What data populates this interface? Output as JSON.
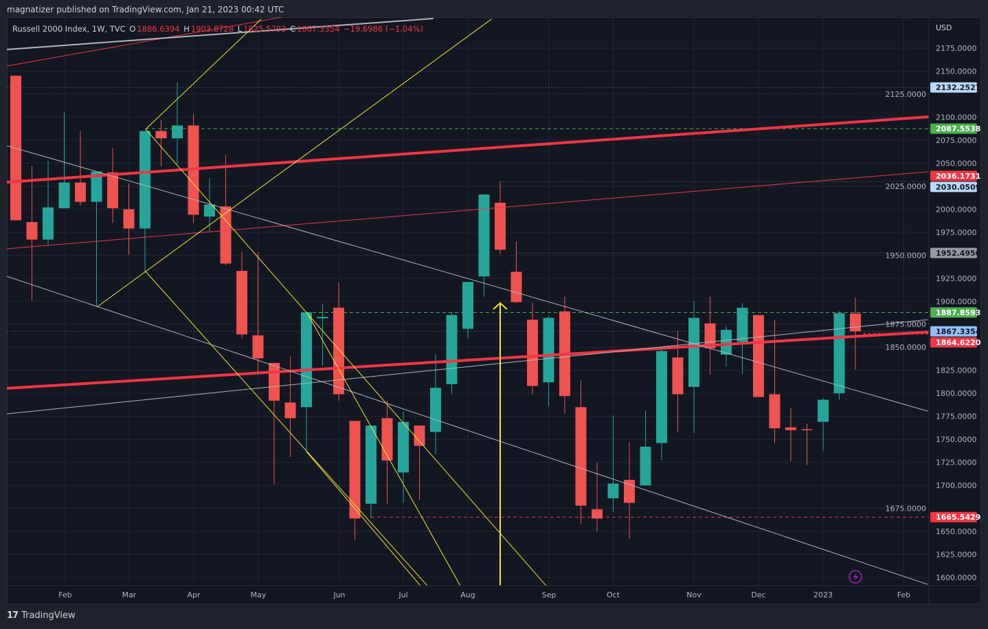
{
  "publish_line": "magnatizer published on TradingView.com, Jan 21, 2023 00:42 UTC",
  "legend": {
    "symbol": "Russell 2000 Index, 1W, TVC",
    "o_label": "O",
    "o": "1886.6394",
    "h_label": "H",
    "h": "1903.8728",
    "l_label": "L",
    "l": "1825.5793",
    "c_label": "C",
    "c": "1867.3354",
    "change": "−19.6986 (−1.04%)"
  },
  "footer": {
    "logo_mark": "17",
    "brand": "TradingView"
  },
  "colors": {
    "up": "#26a69a",
    "down": "#ef5350",
    "bg": "#131722",
    "grid": "#232733",
    "red_line": "#f23645",
    "yellow": "#f5e33b",
    "white_line": "#b2b5be",
    "green_level": "#4caf50"
  },
  "chart_data": {
    "type": "candlestick",
    "title": "Russell 2000 Index, 1W, TVC",
    "currency": "USD",
    "ylim": [
      1590,
      2210
    ],
    "y_ticks": [
      "2175.0000",
      "2150.0000",
      "2125.0000",
      "2100.0000",
      "2075.0000",
      "2050.0000",
      "2025.0000",
      "2000.0000",
      "1975.0000",
      "1950.0000",
      "1925.0000",
      "1900.0000",
      "1875.0000",
      "1850.0000",
      "1825.0000",
      "1800.0000",
      "1775.0000",
      "1750.0000",
      "1725.0000",
      "1700.0000",
      "1675.0000",
      "1650.0000",
      "1625.0000",
      "1600.0000"
    ],
    "x_ticks": [
      {
        "label": "Feb",
        "bar": 3.06
      },
      {
        "label": "Mar",
        "bar": 7.02
      },
      {
        "label": "Apr",
        "bar": 11.02
      },
      {
        "label": "May",
        "bar": 15.02
      },
      {
        "label": "Jun",
        "bar": 20.04
      },
      {
        "label": "Jul",
        "bar": 24.0
      },
      {
        "label": "Aug",
        "bar": 28.0
      },
      {
        "label": "Sep",
        "bar": 33.02
      },
      {
        "label": "Oct",
        "bar": 37.0
      },
      {
        "label": "Nov",
        "bar": 42.0
      },
      {
        "label": "Dec",
        "bar": 46.0
      },
      {
        "label": "2023",
        "bar": 50.0
      },
      {
        "label": "Feb",
        "bar": 55.0
      }
    ],
    "candles": [
      [
        2145,
        2145,
        1988,
        1988
      ],
      [
        1986,
        2047,
        1901,
        1967
      ],
      [
        1967,
        2053,
        1960,
        2002
      ],
      [
        2001,
        2105,
        2001,
        2029
      ],
      [
        2029,
        2085,
        2004,
        2008
      ],
      [
        2008,
        2041,
        1894,
        2041
      ],
      [
        2040,
        2067,
        1985,
        2001
      ],
      [
        2000,
        2028,
        1951,
        1979
      ],
      [
        1979,
        2085,
        1932,
        2085
      ],
      [
        2085,
        2097,
        2047,
        2077
      ],
      [
        2077,
        2138,
        2049,
        2091
      ],
      [
        2091,
        2103,
        1985,
        1994
      ],
      [
        1992,
        2034,
        1976,
        2005
      ],
      [
        2003,
        2059,
        1939,
        1941
      ],
      [
        1933,
        1954,
        1860,
        1864
      ],
      [
        1863,
        1953,
        1822,
        1838
      ],
      [
        1833,
        1833,
        1701,
        1792
      ],
      [
        1790,
        1840,
        1731,
        1773
      ],
      [
        1785,
        1888,
        1736,
        1888
      ],
      [
        1881.5,
        1897,
        1830,
        1883
      ],
      [
        1893,
        1920,
        1792,
        1799
      ],
      [
        1770,
        1770,
        1641,
        1664
      ],
      [
        1680,
        1765,
        1664,
        1765
      ],
      [
        1773,
        1792,
        1680,
        1727
      ],
      [
        1714,
        1780,
        1681,
        1769
      ],
      [
        1765,
        1765,
        1684,
        1743
      ],
      [
        1758,
        1842,
        1734,
        1806
      ],
      [
        1810,
        1887.5,
        1799,
        1885
      ],
      [
        1870,
        1921,
        1859,
        1921
      ],
      [
        1927,
        2016,
        1905,
        2016
      ],
      [
        2007,
        2030.05,
        1951,
        1956
      ],
      [
        1932,
        1965,
        1898,
        1899
      ],
      [
        1880,
        1898,
        1799,
        1808
      ],
      [
        1812,
        1884.5,
        1786,
        1882
      ],
      [
        1889,
        1905,
        1778,
        1797
      ],
      [
        1785,
        1814,
        1658,
        1678
      ],
      [
        1674,
        1725,
        1650,
        1664
      ],
      [
        1686,
        1776,
        1671,
        1702
      ],
      [
        1706,
        1747,
        1642,
        1681
      ],
      [
        1700,
        1781,
        1700,
        1742
      ],
      [
        1746,
        1848,
        1727,
        1846
      ],
      [
        1839,
        1868,
        1758,
        1799
      ],
      [
        1807,
        1900,
        1757,
        1882
      ],
      [
        1876,
        1905,
        1820,
        1849
      ],
      [
        1842,
        1873,
        1829,
        1869
      ],
      [
        1856,
        1898,
        1821,
        1893
      ],
      [
        1885,
        1885,
        1796,
        1796
      ],
      [
        1799,
        1880,
        1746,
        1762
      ],
      [
        1763,
        1784,
        1726,
        1760
      ],
      [
        1761,
        1767,
        1722,
        1760
      ],
      [
        1769,
        1795,
        1737,
        1793
      ],
      [
        1800,
        1889,
        1793,
        1887
      ],
      [
        1886.6394,
        1903.8728,
        1825.5793,
        1867.3354
      ]
    ],
    "candle_format": [
      "open",
      "high",
      "low",
      "close"
    ],
    "trend_lines": [
      {
        "name": "red-thick-upper",
        "color": "red",
        "width": 4,
        "p": [
          [
            -0.55,
            2029.4
          ],
          [
            56.47,
            2100.3
          ]
        ]
      },
      {
        "name": "red-thick-lower",
        "color": "red",
        "width": 4,
        "p": [
          [
            -0.55,
            1805.4
          ],
          [
            56.47,
            1866.6
          ]
        ]
      },
      {
        "name": "red-thin-mid",
        "color": "red",
        "width": 1,
        "p": [
          [
            -0.55,
            1957
          ],
          [
            56.47,
            2040.6
          ]
        ]
      },
      {
        "name": "red-thin-top",
        "color": "red",
        "width": 1,
        "p": [
          [
            -0.55,
            2155.6
          ],
          [
            16.47,
            2208.6
          ]
        ]
      },
      {
        "name": "white-top",
        "color": "white",
        "width": 2,
        "p": [
          [
            -0.55,
            2173.5
          ],
          [
            25.83,
            2207.1
          ]
        ]
      },
      {
        "name": "white-desc-upper",
        "color": "white",
        "width": 1,
        "p": [
          [
            -0.55,
            2069
          ],
          [
            56.47,
            1780.7
          ]
        ]
      },
      {
        "name": "white-desc-lower",
        "color": "white",
        "width": 1,
        "p": [
          [
            -0.55,
            1927.1
          ],
          [
            56.47,
            1592.5
          ]
        ]
      },
      {
        "name": "white-asc",
        "color": "white",
        "width": 1,
        "p": [
          [
            -0.55,
            1777.7
          ],
          [
            56.47,
            1880
          ]
        ]
      },
      {
        "name": "yellow-1",
        "color": "yellow",
        "width": 1,
        "p": [
          [
            5.06,
            1894.2
          ],
          [
            29.45,
            2206.4
          ]
        ]
      },
      {
        "name": "yellow-2",
        "color": "yellow",
        "width": 1,
        "p": [
          [
            8.04,
            1932.3
          ],
          [
            25.49,
            1591
          ]
        ]
      },
      {
        "name": "yellow-3",
        "color": "yellow",
        "width": 1,
        "p": [
          [
            8.04,
            2086.9
          ],
          [
            32.85,
            1591
          ]
        ]
      },
      {
        "name": "yellow-4",
        "color": "yellow",
        "width": 1,
        "p": [
          [
            18.04,
            1887.5
          ],
          [
            27.53,
            1591
          ]
        ]
      },
      {
        "name": "yellow-5",
        "color": "yellow",
        "width": 1,
        "p": [
          [
            18.04,
            1735.9
          ],
          [
            25.06,
            1591
          ]
        ]
      },
      {
        "name": "yellow-6",
        "color": "yellow",
        "width": 1,
        "p": [
          [
            8.04,
            2086.9
          ],
          [
            15.19,
            2206.4
          ]
        ]
      }
    ],
    "arrow": {
      "bar": 30.0,
      "from": 1591,
      "to": 1898
    },
    "levels": [
      {
        "price": 2132.2527,
        "label": "2132.2527",
        "style": "dotted",
        "from_bar": -0.55,
        "tag_bg": "#bbd9fb",
        "tag_fg": "#131722",
        "line": "#787b86"
      },
      {
        "price": 2087.5538,
        "label": "2087.5538",
        "style": "dashed",
        "from_bar": 8.04,
        "tag_bg": "#4caf50",
        "tag_fg": "#ffffff",
        "line": "#4caf50"
      },
      {
        "price": 2036.1731,
        "label": "2036.1731",
        "style": "none",
        "from_bar": 56,
        "tag_bg": "#f23645",
        "tag_fg": "#ffffff",
        "line": "#f23645"
      },
      {
        "price": 2030.0509,
        "label": "2030.0509",
        "style": "dotted",
        "from_bar": 30.0,
        "tag_bg": "#bbd9fb",
        "tag_fg": "#131722",
        "line": "#787b86"
      },
      {
        "price": 1952.495,
        "label": "1952.4950",
        "style": "dotted",
        "from_bar": 31.0,
        "tag_bg": "#9598a1",
        "tag_fg": "#131722",
        "line": "#787b86"
      },
      {
        "price": 1887.8593,
        "label": "1887.8593",
        "style": "dashed",
        "from_bar": 18.0,
        "tag_bg": "#4caf50",
        "tag_fg": "#ffffff",
        "line": "#4caf50"
      },
      {
        "price": 1867.3354,
        "label": "1867.3354",
        "style": "dotted",
        "from_bar": -0.55,
        "tag_bg": "#90bff9",
        "tag_fg": "#131722",
        "line": "#787b86"
      },
      {
        "price": 1864.622,
        "label": "1864.6220",
        "style": "reddot",
        "from_bar": 52.5,
        "tag_bg": "#f23645",
        "tag_fg": "#ffffff",
        "line": "#f23645"
      },
      {
        "price": 1665.5429,
        "label": "1665.5429",
        "style": "dashed",
        "from_bar": 22.0,
        "tag_bg": "#f23645",
        "tag_fg": "#ffffff",
        "line": "#f23645"
      }
    ]
  }
}
